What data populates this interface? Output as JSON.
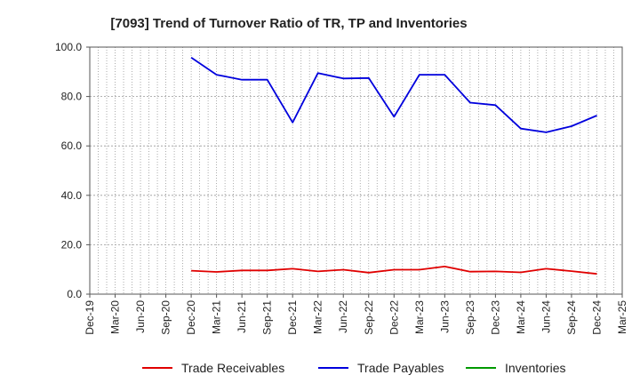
{
  "chart_data": {
    "type": "line",
    "title": "[7093]  Trend of Turnover Ratio of TR, TP and Inventories",
    "xlabel": "",
    "ylabel": "",
    "ylim": [
      0,
      100
    ],
    "yticks": [
      "0.0",
      "20.0",
      "40.0",
      "60.0",
      "80.0",
      "100.0"
    ],
    "x_tick_labels": [
      "Dec-19",
      "Mar-20",
      "Jun-20",
      "Sep-20",
      "Dec-20",
      "Mar-21",
      "Jun-21",
      "Sep-21",
      "Dec-21",
      "Mar-22",
      "Jun-22",
      "Sep-22",
      "Dec-22",
      "Mar-23",
      "Jun-23",
      "Sep-23",
      "Dec-23",
      "Mar-24",
      "Jun-24",
      "Sep-24",
      "Dec-24",
      "Mar-25"
    ],
    "grid": true,
    "legend_position": "bottom",
    "series": [
      {
        "name": "Trade Receivables",
        "color": "#e00000",
        "x": [
          "Dec-20",
          "Mar-21",
          "Jun-21",
          "Sep-21",
          "Dec-21",
          "Mar-22",
          "Jun-22",
          "Sep-22",
          "Dec-22",
          "Mar-23",
          "Jun-23",
          "Sep-23",
          "Dec-23",
          "Mar-24",
          "Jun-24",
          "Sep-24",
          "Dec-24"
        ],
        "values": [
          9.5,
          9.0,
          9.6,
          9.6,
          10.3,
          9.2,
          9.9,
          8.7,
          9.9,
          9.9,
          11.2,
          9.1,
          9.2,
          8.8,
          10.3,
          9.3,
          8.2
        ]
      },
      {
        "name": "Trade Payables",
        "color": "#0000dd",
        "x": [
          "Dec-20",
          "Mar-21",
          "Jun-21",
          "Sep-21",
          "Dec-21",
          "Mar-22",
          "Jun-22",
          "Sep-22",
          "Dec-22",
          "Mar-23",
          "Jun-23",
          "Sep-23",
          "Dec-23",
          "Mar-24",
          "Jun-24",
          "Sep-24",
          "Dec-24"
        ],
        "values": [
          95.8,
          88.8,
          86.8,
          86.8,
          69.5,
          89.5,
          87.3,
          87.5,
          71.8,
          88.8,
          88.8,
          77.5,
          76.5,
          67.0,
          65.5,
          68.0,
          72.3
        ]
      },
      {
        "name": "Inventories",
        "color": "#009900",
        "x": [],
        "values": []
      }
    ]
  }
}
